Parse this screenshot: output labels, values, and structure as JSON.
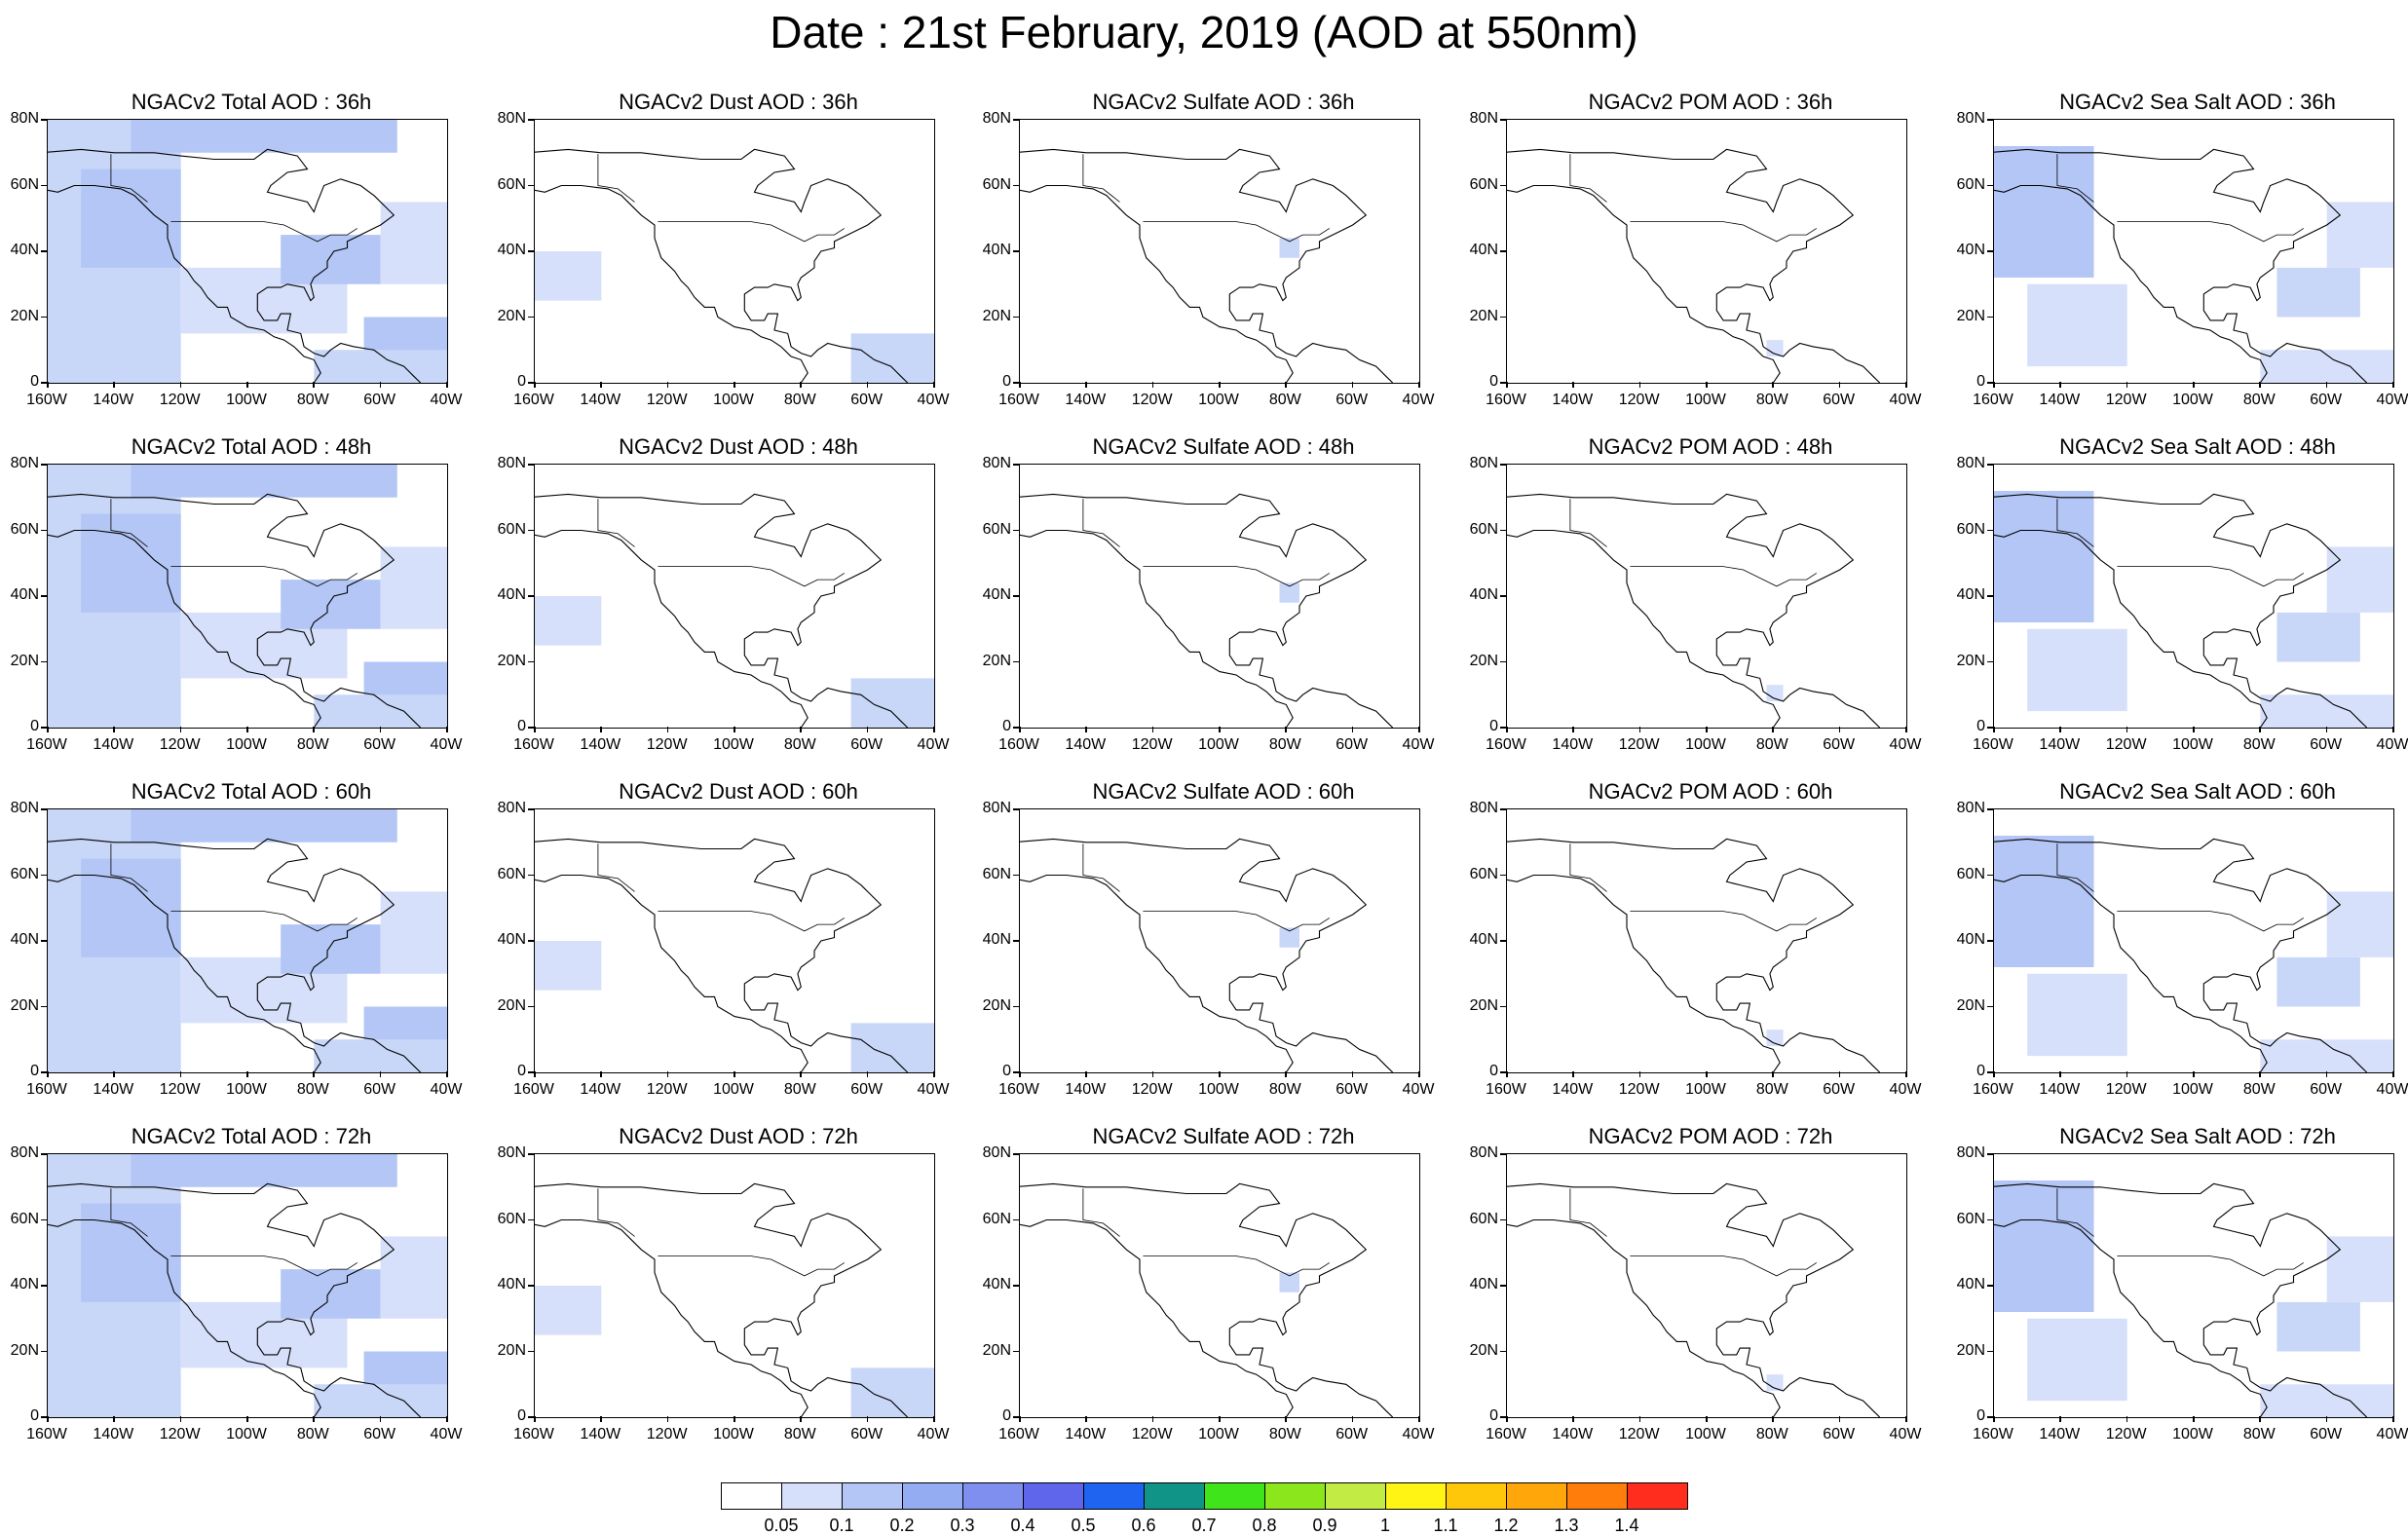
{
  "title": "Date : 21st February, 2019 (AOD at 550nm)",
  "axes": {
    "lat_labels": [
      "80N",
      "60N",
      "40N",
      "20N",
      "0"
    ],
    "lon_labels": [
      "160W",
      "140W",
      "120W",
      "100W",
      "80W",
      "60W",
      "40W"
    ]
  },
  "panels": [
    [
      "NGACv2 Total AOD : 36h",
      "NGACv2 Dust AOD : 36h",
      "NGACv2 Sulfate AOD : 36h",
      "NGACv2 POM AOD : 36h",
      "NGACv2 Sea Salt AOD : 36h"
    ],
    [
      "NGACv2 Total AOD : 48h",
      "NGACv2 Dust AOD : 48h",
      "NGACv2 Sulfate AOD : 48h",
      "NGACv2 POM AOD : 48h",
      "NGACv2 Sea Salt AOD : 48h"
    ],
    [
      "NGACv2 Total AOD : 60h",
      "NGACv2 Dust AOD : 60h",
      "NGACv2 Sulfate AOD : 60h",
      "NGACv2 POM AOD : 60h",
      "NGACv2 Sea Salt AOD : 60h"
    ],
    [
      "NGACv2 Total AOD : 72h",
      "NGACv2 Dust AOD : 72h",
      "NGACv2 Sulfate AOD : 72h",
      "NGACv2 POM AOD : 72h",
      "NGACv2 Sea Salt  AOD : 72h"
    ]
  ],
  "colorbar": {
    "labels": [
      "0.05",
      "0.1",
      "0.2",
      "0.3",
      "0.4",
      "0.5",
      "0.6",
      "0.7",
      "0.8",
      "0.9",
      "1",
      "1.1",
      "1.2",
      "1.3",
      "1.4"
    ],
    "colors": [
      "#ffffff",
      "#d6e0fa",
      "#b3c6f5",
      "#93acf2",
      "#7f8ff0",
      "#5f66eb",
      "#1e64f0",
      "#119488",
      "#3fe51a",
      "#8ce61c",
      "#c2ec44",
      "#fff414",
      "#ffc70a",
      "#ffa70a",
      "#ff7d0a",
      "#ff2d1e"
    ]
  }
}
